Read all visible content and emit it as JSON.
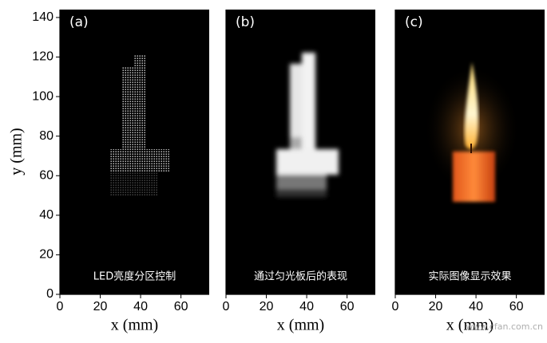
{
  "chart_data": [
    {
      "type": "image",
      "label": "(a)",
      "caption": "LED亮度分区控制",
      "xlabel": "x (mm)",
      "ylabel": "y (mm)",
      "xlim": [
        0,
        74
      ],
      "xticks": [
        0,
        20,
        40,
        60
      ],
      "ylim": [
        0,
        144
      ],
      "yticks": [
        0,
        20,
        40,
        60,
        80,
        100,
        120,
        140
      ]
    },
    {
      "type": "image",
      "label": "(b)",
      "caption": "通过匀光板后的表现",
      "xlabel": "x (mm)",
      "xlim": [
        0,
        74
      ],
      "xticks": [
        0,
        20,
        40,
        60
      ]
    },
    {
      "type": "image",
      "label": "(c)",
      "caption": "实际图像显示效果",
      "xlabel": "x (mm)",
      "xlim": [
        0,
        74
      ],
      "xticks": [
        0,
        20,
        40,
        60
      ],
      "watermark": "www.cfan.com.cn"
    }
  ]
}
